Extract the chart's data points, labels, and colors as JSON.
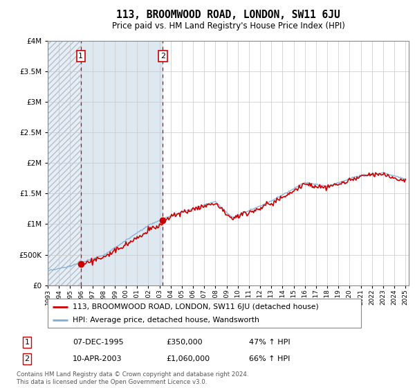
{
  "title": "113, BROOMWOOD ROAD, LONDON, SW11 6JU",
  "subtitle": "Price paid vs. HM Land Registry's House Price Index (HPI)",
  "legend_line1": "113, BROOMWOOD ROAD, LONDON, SW11 6JU (detached house)",
  "legend_line2": "HPI: Average price, detached house, Wandsworth",
  "annotation1_date": "07-DEC-1995",
  "annotation1_price": "£350,000",
  "annotation1_hpi": "47% ↑ HPI",
  "annotation2_date": "10-APR-2003",
  "annotation2_price": "£1,060,000",
  "annotation2_hpi": "66% ↑ HPI",
  "footer": "Contains HM Land Registry data © Crown copyright and database right 2024.\nThis data is licensed under the Open Government Licence v3.0.",
  "price_color": "#cc0000",
  "hpi_color": "#7dadd4",
  "hatch_color": "#c8d4e0",
  "blue_fill_color": "#dde8f0",
  "ylim": [
    0,
    4000000
  ],
  "yticks": [
    0,
    500000,
    1000000,
    1500000,
    2000000,
    2500000,
    3000000,
    3500000,
    4000000
  ],
  "sale1_year": 1995,
  "sale1_month": 12,
  "sale1_price": 350000,
  "sale2_year": 2003,
  "sale2_month": 4,
  "sale2_price": 1060000
}
